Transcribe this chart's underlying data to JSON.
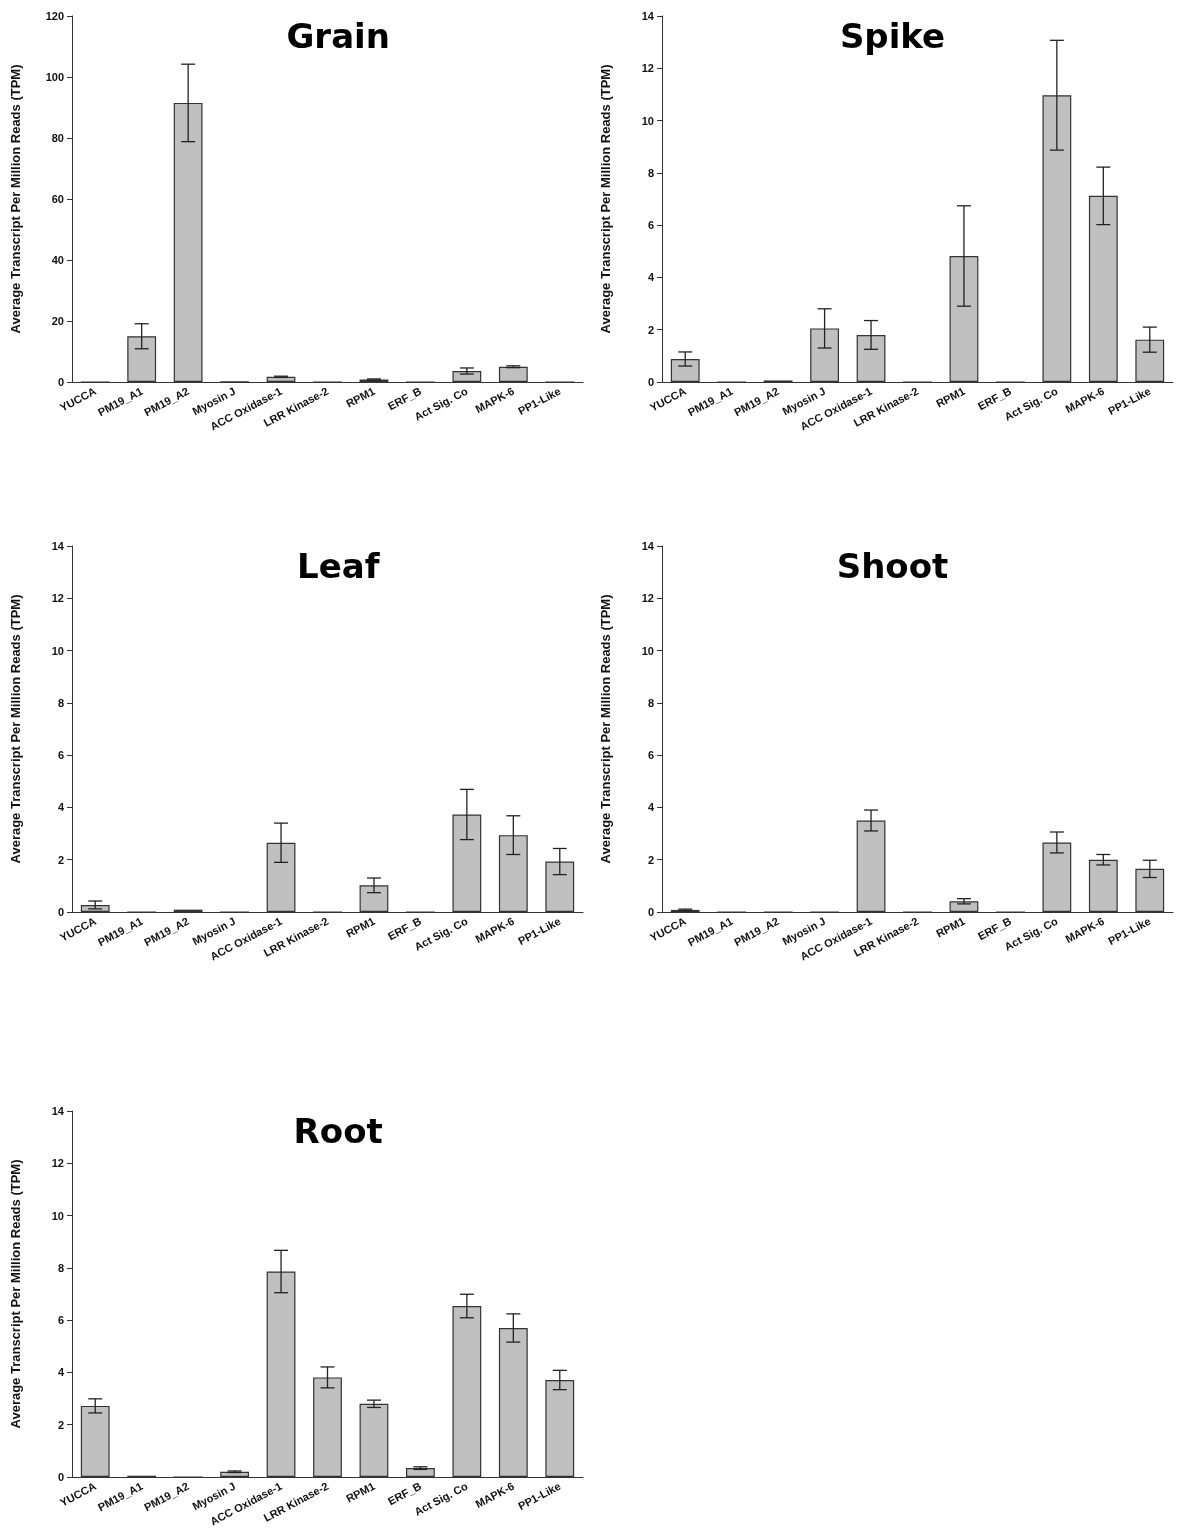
{
  "chart_data": [
    {
      "type": "bar",
      "title": "Grain",
      "ylabel": "Average Transcript Per Million Reads (TPM)",
      "color": "#c0c0c0",
      "categories": [
        "YUCCA",
        "PM19_A1",
        "PM19_A2",
        "Myosin J",
        "ACC Oxidase-1",
        "LRR Kinase-2",
        "RPM1",
        "ERF_B",
        "Act Sig. Co",
        "MAPK-6",
        "PP1-Like"
      ],
      "values": [
        0,
        15,
        91.5,
        0.1,
        1.7,
        0,
        0.8,
        0,
        3.6,
        5,
        0
      ],
      "errors": [
        null,
        4.1,
        12.7,
        null,
        0.2,
        null,
        0.2,
        null,
        1,
        0.3,
        null
      ],
      "ylim": [
        0,
        120
      ],
      "yticks": [
        0,
        20,
        40,
        60,
        80,
        100,
        120
      ]
    },
    {
      "type": "bar",
      "title": "Spike",
      "ylabel": "Average Transcript Per Million Reads (TPM)",
      "color": "#c0c0c0",
      "categories": [
        "YUCCA",
        "PM19_A1",
        "PM19_A2",
        "Myosin J",
        "ACC Oxidase-1",
        "LRR Kinase-2",
        "RPM1",
        "ERF_B",
        "Act Sig. Co",
        "MAPK-6",
        "PP1-Like"
      ],
      "values": [
        0.88,
        0,
        0.06,
        2.05,
        1.8,
        0,
        4.82,
        0,
        10.97,
        7.12,
        1.62
      ],
      "errors": [
        0.27,
        null,
        null,
        0.75,
        0.55,
        null,
        1.92,
        null,
        2.1,
        1.1,
        0.48
      ],
      "ylim": [
        0,
        14
      ],
      "yticks": [
        0,
        2,
        4,
        6,
        8,
        10,
        12,
        14
      ]
    },
    {
      "type": "bar",
      "title": "Leaf",
      "ylabel": "Average Transcript Per Million Reads (TPM)",
      "color": "#c0c0c0",
      "categories": [
        "YUCCA",
        "PM19_A1",
        "PM19_A2",
        "Myosin J",
        "ACC Oxidase-1",
        "LRR Kinase-2",
        "RPM1",
        "ERF_B",
        "Act Sig. Co",
        "MAPK-6",
        "PP1-Like"
      ],
      "values": [
        0.27,
        0,
        0.09,
        0,
        2.65,
        0,
        1.02,
        0,
        3.73,
        2.94,
        1.93
      ],
      "errors": [
        0.15,
        null,
        null,
        null,
        0.75,
        null,
        0.28,
        null,
        0.96,
        0.74,
        0.5
      ],
      "ylim": [
        0,
        14
      ],
      "yticks": [
        0,
        2,
        4,
        6,
        8,
        10,
        12,
        14
      ]
    },
    {
      "type": "bar",
      "title": "Shoot",
      "ylabel": "Average Transcript Per Million Reads (TPM)",
      "color": "#c0c0c0",
      "categories": [
        "YUCCA",
        "PM19_A1",
        "PM19_A2",
        "Myosin J",
        "ACC Oxidase-1",
        "LRR Kinase-2",
        "RPM1",
        "ERF_B",
        "Act Sig. Co",
        "MAPK-6",
        "PP1-Like"
      ],
      "values": [
        0.08,
        0,
        0,
        0,
        3.5,
        0,
        0.41,
        0,
        2.66,
        2,
        1.65
      ],
      "errors": [
        0.03,
        null,
        null,
        null,
        0.4,
        null,
        0.1,
        null,
        0.4,
        0.2,
        0.33
      ],
      "ylim": [
        0,
        14
      ],
      "yticks": [
        0,
        2,
        4,
        6,
        8,
        10,
        12,
        14
      ]
    },
    {
      "type": "bar",
      "title": "Root",
      "ylabel": "Average Transcript Per Million Reads (TPM)",
      "color": "#c0c0c0",
      "categories": [
        "YUCCA",
        "PM19_A1",
        "PM19_A2",
        "Myosin J",
        "ACC Oxidase-1",
        "LRR Kinase-2",
        "RPM1",
        "ERF_B",
        "Act Sig. Co",
        "MAPK-6",
        "PP1-Like"
      ],
      "values": [
        2.72,
        0.05,
        0,
        0.2,
        7.86,
        3.81,
        2.8,
        0.34,
        6.54,
        5.7,
        3.71
      ],
      "errors": [
        0.27,
        null,
        null,
        0.03,
        0.81,
        0.4,
        0.14,
        0.05,
        0.45,
        0.54,
        0.37
      ],
      "ylim": [
        0,
        14
      ],
      "yticks": [
        0,
        2,
        4,
        6,
        8,
        10,
        12,
        14
      ]
    }
  ]
}
